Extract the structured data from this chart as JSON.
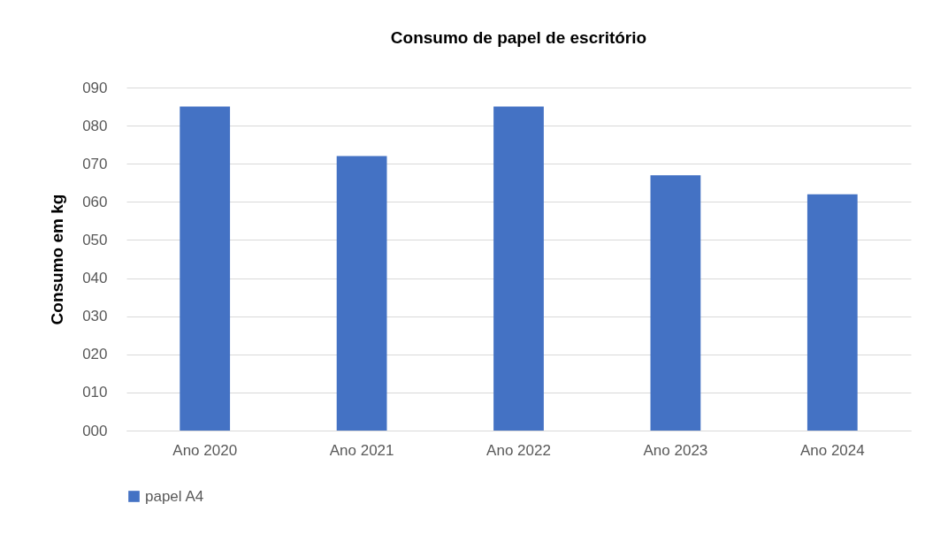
{
  "chart_data": {
    "type": "bar",
    "title": "Consumo de papel de escritório",
    "ylabel": "Consumo em kg",
    "categories": [
      "Ano 2020",
      "Ano 2021",
      "Ano 2022",
      "Ano 2023",
      "Ano 2024"
    ],
    "series": [
      {
        "name": "papel A4",
        "color": "#4472c4",
        "values": [
          85,
          72,
          85,
          67,
          62
        ]
      }
    ],
    "ylim": [
      0,
      90
    ],
    "yticks": [
      {
        "value": 0,
        "label": "000"
      },
      {
        "value": 10,
        "label": "010"
      },
      {
        "value": 20,
        "label": "020"
      },
      {
        "value": 30,
        "label": "030"
      },
      {
        "value": 40,
        "label": "040"
      },
      {
        "value": 50,
        "label": "050"
      },
      {
        "value": 60,
        "label": "060"
      },
      {
        "value": 70,
        "label": "070"
      },
      {
        "value": 80,
        "label": "080"
      },
      {
        "value": 90,
        "label": "090"
      }
    ],
    "grid": "y",
    "legend": "bottom"
  }
}
